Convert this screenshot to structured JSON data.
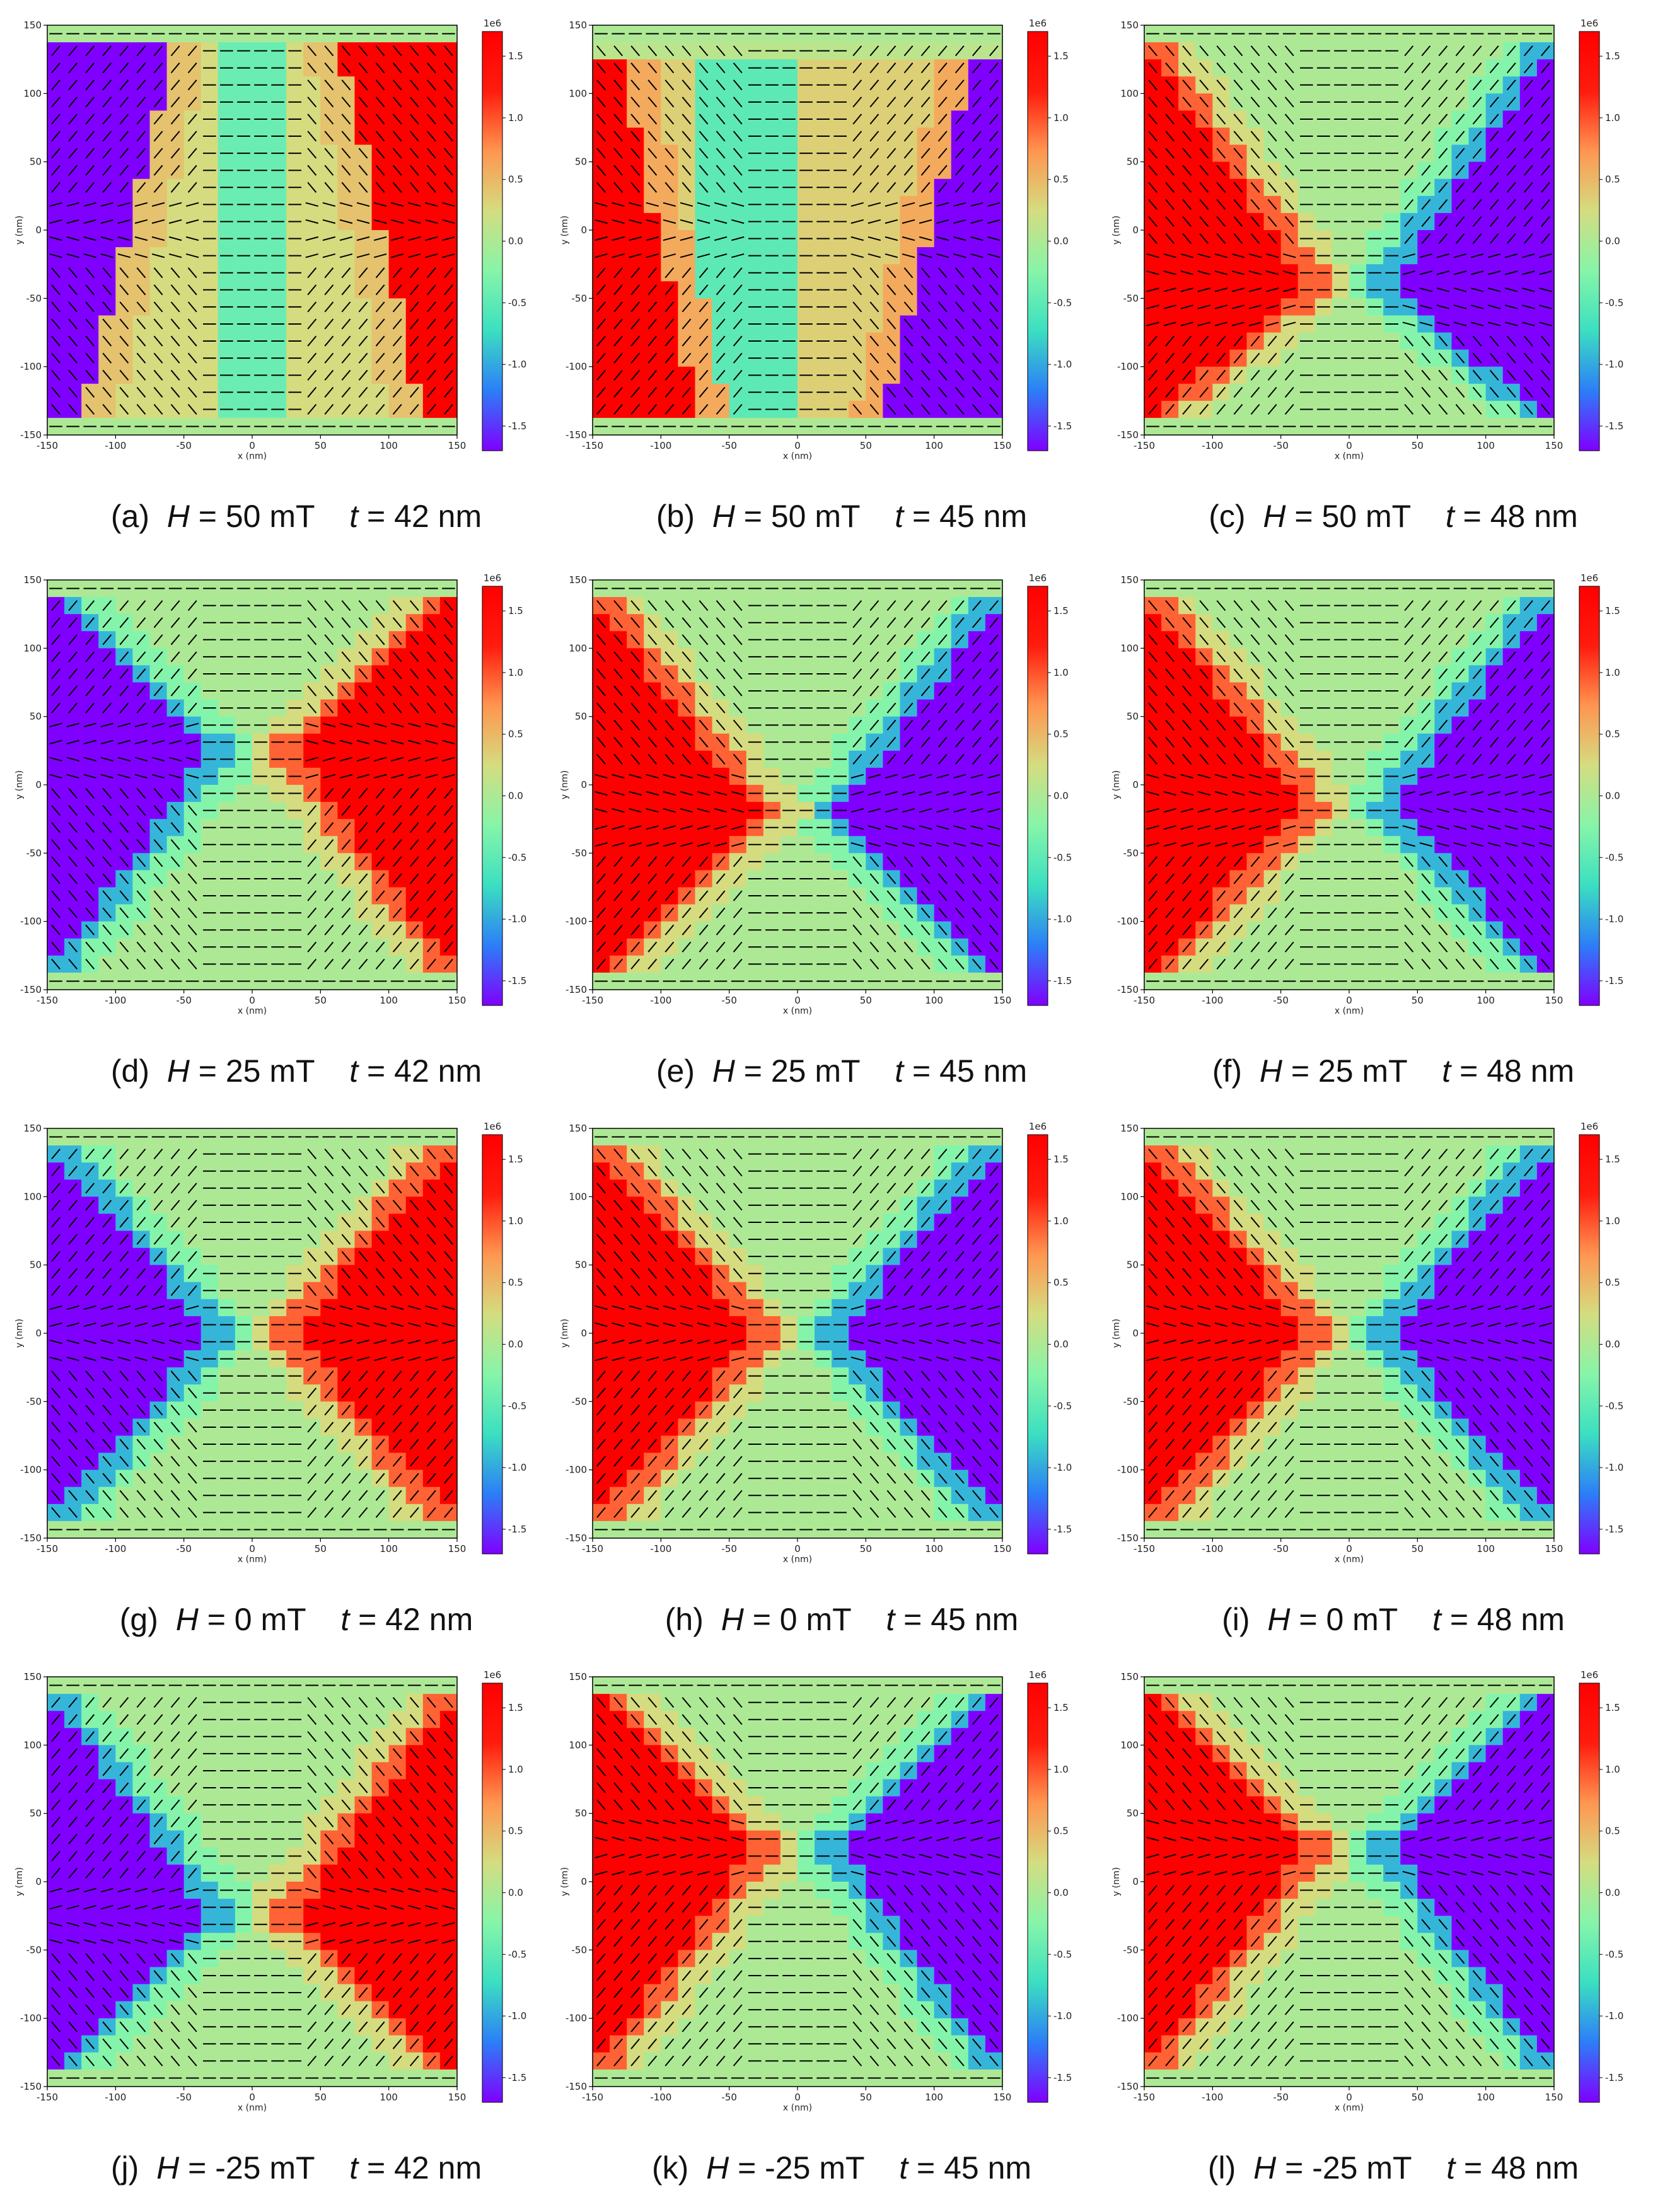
{
  "figure": {
    "colormap": [
      "#8000ff",
      "#2c7ef7",
      "#3bdfc1",
      "#86f5a9",
      "#d4dd80",
      "#ff9650",
      "#ff1c0e",
      "#ff0000"
    ],
    "arrow_color": "#000000",
    "panels": [
      {
        "label": "(a)",
        "H": "50 mT",
        "t": "42 nm",
        "pattern": "a"
      },
      {
        "label": "(b)",
        "H": "50 mT",
        "t": "45 nm",
        "pattern": "b"
      },
      {
        "label": "(c)",
        "H": "50 mT",
        "t": "48 nm",
        "pattern": "c"
      },
      {
        "label": "(d)",
        "H": "25 mT",
        "t": "42 nm",
        "pattern": "d"
      },
      {
        "label": "(e)",
        "H": "25 mT",
        "t": "45 nm",
        "pattern": "e"
      },
      {
        "label": "(f)",
        "H": "25 mT",
        "t": "48 nm",
        "pattern": "f"
      },
      {
        "label": "(g)",
        "H": "0 mT",
        "t": "42 nm",
        "pattern": "g"
      },
      {
        "label": "(h)",
        "H": "0 mT",
        "t": "45 nm",
        "pattern": "h"
      },
      {
        "label": "(i)",
        "H": "0 mT",
        "t": "48 nm",
        "pattern": "i"
      },
      {
        "label": "(j)",
        "H": "-25 mT",
        "t": "42 nm",
        "pattern": "j"
      },
      {
        "label": "(k)",
        "H": "-25 mT",
        "t": "45 nm",
        "pattern": "k"
      },
      {
        "label": "(l)",
        "H": "-25 mT",
        "t": "48 nm",
        "pattern": "l"
      }
    ]
  },
  "chart_data": {
    "type": "heatmap",
    "xlabel": "x (nm)",
    "ylabel": "y (nm)",
    "xlim": [
      -150,
      150
    ],
    "ylim": [
      -150,
      150
    ],
    "xticks": [
      -150,
      -100,
      -50,
      0,
      50,
      100,
      150
    ],
    "yticks": [
      -150,
      -100,
      -50,
      0,
      50,
      100,
      150
    ],
    "colorbar": {
      "multiplier": "1e6",
      "range": [
        -1.7,
        1.7
      ],
      "ticks": [
        "1.5",
        "1.0",
        "0.5",
        "0.0",
        "-0.5",
        "-1.0",
        "-1.5"
      ],
      "tick_values": [
        1.5,
        1.0,
        0.5,
        0.0,
        -0.5,
        -1.0,
        -1.5
      ]
    },
    "panels": [
      {
        "label": "(a)",
        "H_mT": 50,
        "t_nm": 42,
        "left_lobe": "negative",
        "right_lobe": "positive",
        "core_y_nm": null
      },
      {
        "label": "(b)",
        "H_mT": 50,
        "t_nm": 45,
        "left_lobe": "positive",
        "right_lobe": "negative",
        "core_y_nm": null
      },
      {
        "label": "(c)",
        "H_mT": 50,
        "t_nm": 48,
        "left_lobe": "positive",
        "right_lobe": "negative",
        "core_y_nm": -40
      },
      {
        "label": "(d)",
        "H_mT": 25,
        "t_nm": 42,
        "left_lobe": "negative",
        "right_lobe": "positive",
        "core_y_nm": 25
      },
      {
        "label": "(e)",
        "H_mT": 25,
        "t_nm": 45,
        "left_lobe": "positive",
        "right_lobe": "negative",
        "core_y_nm": -20
      },
      {
        "label": "(f)",
        "H_mT": 25,
        "t_nm": 48,
        "left_lobe": "positive",
        "right_lobe": "negative",
        "core_y_nm": -15
      },
      {
        "label": "(g)",
        "H_mT": 0,
        "t_nm": 42,
        "left_lobe": "negative",
        "right_lobe": "positive",
        "core_y_nm": 0
      },
      {
        "label": "(h)",
        "H_mT": 0,
        "t_nm": 45,
        "left_lobe": "positive",
        "right_lobe": "negative",
        "core_y_nm": 0
      },
      {
        "label": "(i)",
        "H_mT": 0,
        "t_nm": 48,
        "left_lobe": "positive",
        "right_lobe": "negative",
        "core_y_nm": 0
      },
      {
        "label": "(j)",
        "H_mT": -25,
        "t_nm": 42,
        "left_lobe": "negative",
        "right_lobe": "positive",
        "core_y_nm": -25
      },
      {
        "label": "(k)",
        "H_mT": -25,
        "t_nm": 45,
        "left_lobe": "positive",
        "right_lobe": "negative",
        "core_y_nm": 25
      },
      {
        "label": "(l)",
        "H_mT": -25,
        "t_nm": 48,
        "left_lobe": "positive",
        "right_lobe": "negative",
        "core_y_nm": 25
      }
    ]
  }
}
